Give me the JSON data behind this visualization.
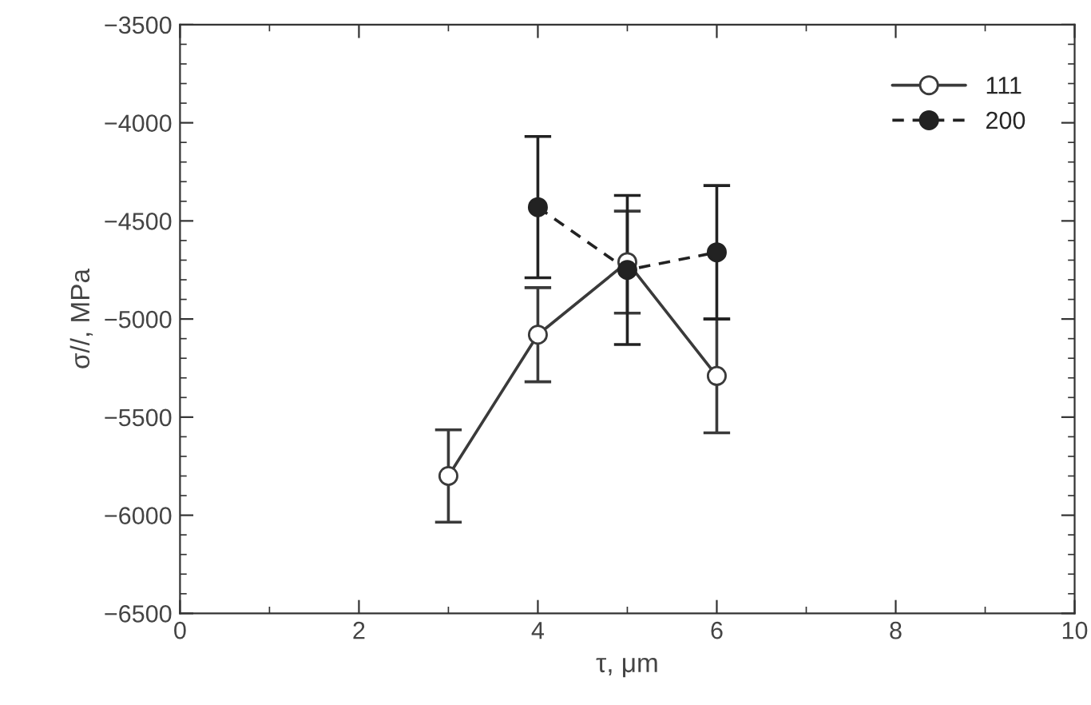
{
  "chart_data": {
    "type": "line",
    "xlabel": "τ, μm",
    "ylabel": "σ//, MPa",
    "xlim": [
      0,
      10
    ],
    "xticks": [
      0,
      2,
      4,
      6,
      8,
      10
    ],
    "ylim": [
      -6500,
      -3500
    ],
    "yticks": [
      -6500,
      -6000,
      -5500,
      -5000,
      -4500,
      -4000,
      -3500
    ],
    "grid": false,
    "legend": "top right",
    "series": [
      {
        "name": "111",
        "color": "#3a3a3a",
        "x": [
          3,
          4,
          5,
          6
        ],
        "values": [
          -5800,
          -5080,
          -4710,
          -5290
        ],
        "errors": [
          235,
          240,
          260,
          290
        ],
        "marker": "circle",
        "line_style": "solid"
      },
      {
        "name": "200",
        "color": "#222222",
        "x": [
          4,
          5,
          6
        ],
        "values": [
          -4430,
          -4750,
          -4660
        ],
        "errors": [
          360,
          380,
          340
        ],
        "marker": "circle",
        "line_style": "dashed"
      }
    ]
  }
}
